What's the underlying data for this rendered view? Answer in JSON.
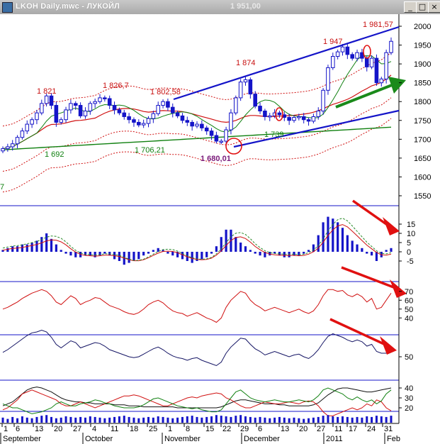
{
  "window": {
    "title": "LKOH Daily.mwc - ЛУКОЙЛ",
    "price_readout": "1 951,00",
    "minimize_glyph": "_",
    "maximize_glyph": "□",
    "close_glyph": "×"
  },
  "colors": {
    "candle": "#1414c8",
    "trend_channel": "#1414c8",
    "green_arrow": "#1a8a1a",
    "red_arrow": "#e01010",
    "ma_red": "#d01010",
    "ma_green": "#108010",
    "band_dotted": "#d01010",
    "annotation_red": "#c81010",
    "annotation_green": "#108010",
    "annotation_purple": "#7a1a7a"
  },
  "chart_data": [
    {
      "type": "candlestick",
      "panel": "price",
      "ticker": "LKOH",
      "y_ticks": [
        "2000",
        "1950",
        "1900",
        "1850",
        "1800",
        "1750",
        "1700",
        "1650",
        "1600",
        "1550"
      ],
      "ylim": [
        1510,
        2010
      ],
      "grid": false,
      "close": [
        1675,
        1680,
        1688,
        1705,
        1722,
        1740,
        1752,
        1770,
        1795,
        1815,
        1790,
        1745,
        1752,
        1778,
        1795,
        1790,
        1762,
        1775,
        1795,
        1800,
        1810,
        1808,
        1790,
        1778,
        1770,
        1760,
        1752,
        1745,
        1738,
        1742,
        1755,
        1768,
        1790,
        1800,
        1785,
        1770,
        1762,
        1750,
        1745,
        1735,
        1740,
        1730,
        1722,
        1710,
        1695,
        1695,
        1725,
        1770,
        1810,
        1852,
        1858,
        1820,
        1788,
        1775,
        1760,
        1762,
        1770,
        1765,
        1758,
        1750,
        1758,
        1760,
        1752,
        1748,
        1760,
        1775,
        1830,
        1890,
        1920,
        1932,
        1945,
        1925,
        1915,
        1930,
        1915,
        1892,
        1915,
        1850,
        1860,
        1930,
        1960
      ],
      "annotations": [
        {
          "text": "1 821",
          "color": "annotation_red"
        },
        {
          "text": "1 826,7",
          "color": "annotation_red"
        },
        {
          "text": "1 802,58",
          "color": "annotation_red"
        },
        {
          "text": "1 874",
          "color": "annotation_red"
        },
        {
          "text": "1 947",
          "color": "annotation_red"
        },
        {
          "text": "1 981,57",
          "color": "annotation_red"
        },
        {
          "text": "1 692",
          "color": "annotation_green"
        },
        {
          "text": "1 706,21",
          "color": "annotation_green"
        },
        {
          "text": "1 739",
          "color": "annotation_green"
        },
        {
          "text": "1 680,01",
          "color": "annotation_purple"
        },
        {
          "text": "7",
          "color": "annotation_green"
        }
      ]
    },
    {
      "type": "bar",
      "panel": "macd_histogram",
      "y_ticks": [
        "15",
        "10",
        "5",
        "0",
        "-5"
      ],
      "ylim": [
        -9,
        20
      ],
      "values": [
        1,
        2,
        3,
        3,
        4,
        4,
        5,
        6,
        8,
        10,
        7,
        4,
        1,
        -1,
        -2,
        -3,
        -3,
        -2,
        -2,
        -3,
        -2,
        -1,
        -2,
        -4,
        -5,
        -7,
        -6,
        -5,
        -4,
        -2,
        -1,
        1,
        2,
        1,
        -1,
        -2,
        -3,
        -4,
        -5,
        -6,
        -5,
        -4,
        -3,
        -1,
        3,
        8,
        12,
        12,
        8,
        5,
        3,
        1,
        -1,
        -2,
        -3,
        -2,
        -1,
        -2,
        -3,
        -3,
        -2,
        -2,
        -1,
        1,
        4,
        9,
        16,
        19,
        18,
        16,
        13,
        9,
        6,
        4,
        2,
        -1,
        -2,
        -5,
        -3,
        1,
        2
      ]
    },
    {
      "type": "line",
      "panel": "rsi",
      "y_ticks": [
        "70",
        "60",
        "50",
        "40"
      ],
      "ylim": [
        30,
        78
      ],
      "values": [
        50,
        52,
        55,
        58,
        62,
        65,
        68,
        70,
        72,
        70,
        65,
        58,
        55,
        60,
        65,
        62,
        55,
        58,
        60,
        63,
        62,
        58,
        54,
        52,
        50,
        47,
        45,
        44,
        46,
        50,
        55,
        58,
        60,
        57,
        52,
        48,
        46,
        45,
        42,
        44,
        46,
        43,
        40,
        38,
        35,
        40,
        52,
        60,
        65,
        70,
        68,
        60,
        55,
        52,
        48,
        50,
        52,
        50,
        48,
        46,
        48,
        50,
        47,
        45,
        48,
        55,
        65,
        72,
        72,
        70,
        71,
        66,
        64,
        67,
        64,
        58,
        62,
        50,
        52,
        60,
        68
      ]
    },
    {
      "type": "line",
      "panel": "stochastic",
      "y_ticks": [
        "50"
      ],
      "ylim": [
        35,
        85
      ],
      "values": [
        55,
        58,
        62,
        66,
        70,
        74,
        77,
        78,
        80,
        78,
        72,
        64,
        60,
        64,
        68,
        66,
        60,
        62,
        64,
        66,
        65,
        62,
        58,
        56,
        54,
        52,
        50,
        49,
        50,
        53,
        56,
        59,
        61,
        58,
        54,
        51,
        49,
        48,
        46,
        48,
        49,
        46,
        44,
        42,
        40,
        44,
        54,
        61,
        66,
        71,
        70,
        64,
        59,
        56,
        52,
        54,
        56,
        54,
        52,
        50,
        52,
        53,
        50,
        48,
        52,
        58,
        66,
        73,
        76,
        74,
        72,
        69,
        67,
        69,
        67,
        62,
        64,
        56,
        54,
        54,
        55
      ]
    },
    {
      "type": "line",
      "panel": "dmi",
      "y_ticks": [
        "40",
        "30",
        "20"
      ],
      "ylim": [
        10,
        50
      ],
      "series": [
        {
          "values": [
            22,
            24,
            26,
            30,
            34,
            38,
            40,
            41,
            40,
            38,
            36,
            33,
            30,
            28,
            27,
            26,
            26,
            25,
            25,
            24,
            24,
            24,
            24,
            23,
            23,
            23,
            22,
            22,
            22,
            21,
            21,
            21,
            21,
            21,
            21,
            21,
            20,
            20,
            20,
            20,
            20,
            20,
            20,
            20,
            20,
            21,
            23,
            25,
            27,
            28,
            28,
            27,
            26,
            25,
            24,
            24,
            24,
            23,
            23,
            22,
            22,
            22,
            22,
            22,
            23,
            25,
            29,
            33,
            36,
            39,
            40,
            40,
            39,
            38,
            37,
            36,
            36,
            37,
            38,
            39,
            40
          ]
        },
        {
          "values": [
            18,
            20,
            24,
            28,
            34,
            36,
            38,
            36,
            34,
            32,
            30,
            28,
            24,
            22,
            22,
            24,
            26,
            24,
            22,
            20,
            22,
            24,
            26,
            28,
            30,
            32,
            32,
            33,
            32,
            30,
            28,
            26,
            24,
            22,
            22,
            24,
            26,
            28,
            30,
            31,
            30,
            32,
            33,
            34,
            35,
            34,
            30,
            28,
            25,
            22,
            20,
            20,
            22,
            24,
            26,
            25,
            24,
            24,
            25,
            26,
            25,
            24,
            26,
            27,
            26,
            22,
            16,
            12,
            12,
            14,
            16,
            18,
            20,
            18,
            20,
            24,
            22,
            28,
            26,
            20,
            17
          ]
        },
        {
          "values": [
            24,
            22,
            20,
            20,
            18,
            16,
            14,
            15,
            16,
            18,
            20,
            24,
            26,
            24,
            22,
            22,
            24,
            25,
            26,
            28,
            27,
            25,
            24,
            22,
            21,
            20,
            20,
            20,
            21,
            23,
            26,
            29,
            30,
            28,
            26,
            24,
            22,
            21,
            20,
            19,
            20,
            18,
            17,
            16,
            16,
            18,
            24,
            30,
            36,
            38,
            34,
            30,
            28,
            27,
            26,
            27,
            28,
            27,
            26,
            26,
            27,
            28,
            27,
            26,
            28,
            32,
            38,
            40,
            38,
            36,
            34,
            30,
            28,
            31,
            28,
            26,
            28,
            24,
            27,
            34,
            38
          ]
        }
      ]
    },
    {
      "type": "bar",
      "panel": "volume",
      "values": [
        8,
        6,
        9,
        7,
        10,
        8,
        7,
        9,
        11,
        12,
        9,
        7,
        8,
        10,
        9,
        8,
        9,
        8,
        10,
        9,
        8,
        7,
        8,
        9,
        10,
        11,
        9,
        8,
        7,
        8,
        9,
        8,
        10,
        9,
        8,
        7,
        8,
        9,
        10,
        11,
        9,
        8,
        9,
        10,
        12,
        11,
        10,
        9,
        11,
        12,
        10,
        9,
        8,
        9,
        8,
        7,
        8,
        9,
        8,
        7,
        8,
        7,
        6,
        7,
        8,
        9,
        11,
        12,
        10,
        9,
        10,
        9,
        8,
        9,
        8,
        10,
        9,
        11,
        10,
        9,
        11
      ]
    }
  ],
  "x_axis": {
    "day_ticks": [
      "1",
      "6",
      "13",
      "20",
      "27",
      "4",
      "11",
      "18",
      "25",
      "1",
      "8",
      "15",
      "22",
      "29",
      "6",
      "13",
      "20",
      "27",
      "11",
      "17",
      "24",
      "31"
    ],
    "months": [
      "September",
      "October",
      "November",
      "December",
      "2011",
      "Feb"
    ]
  }
}
